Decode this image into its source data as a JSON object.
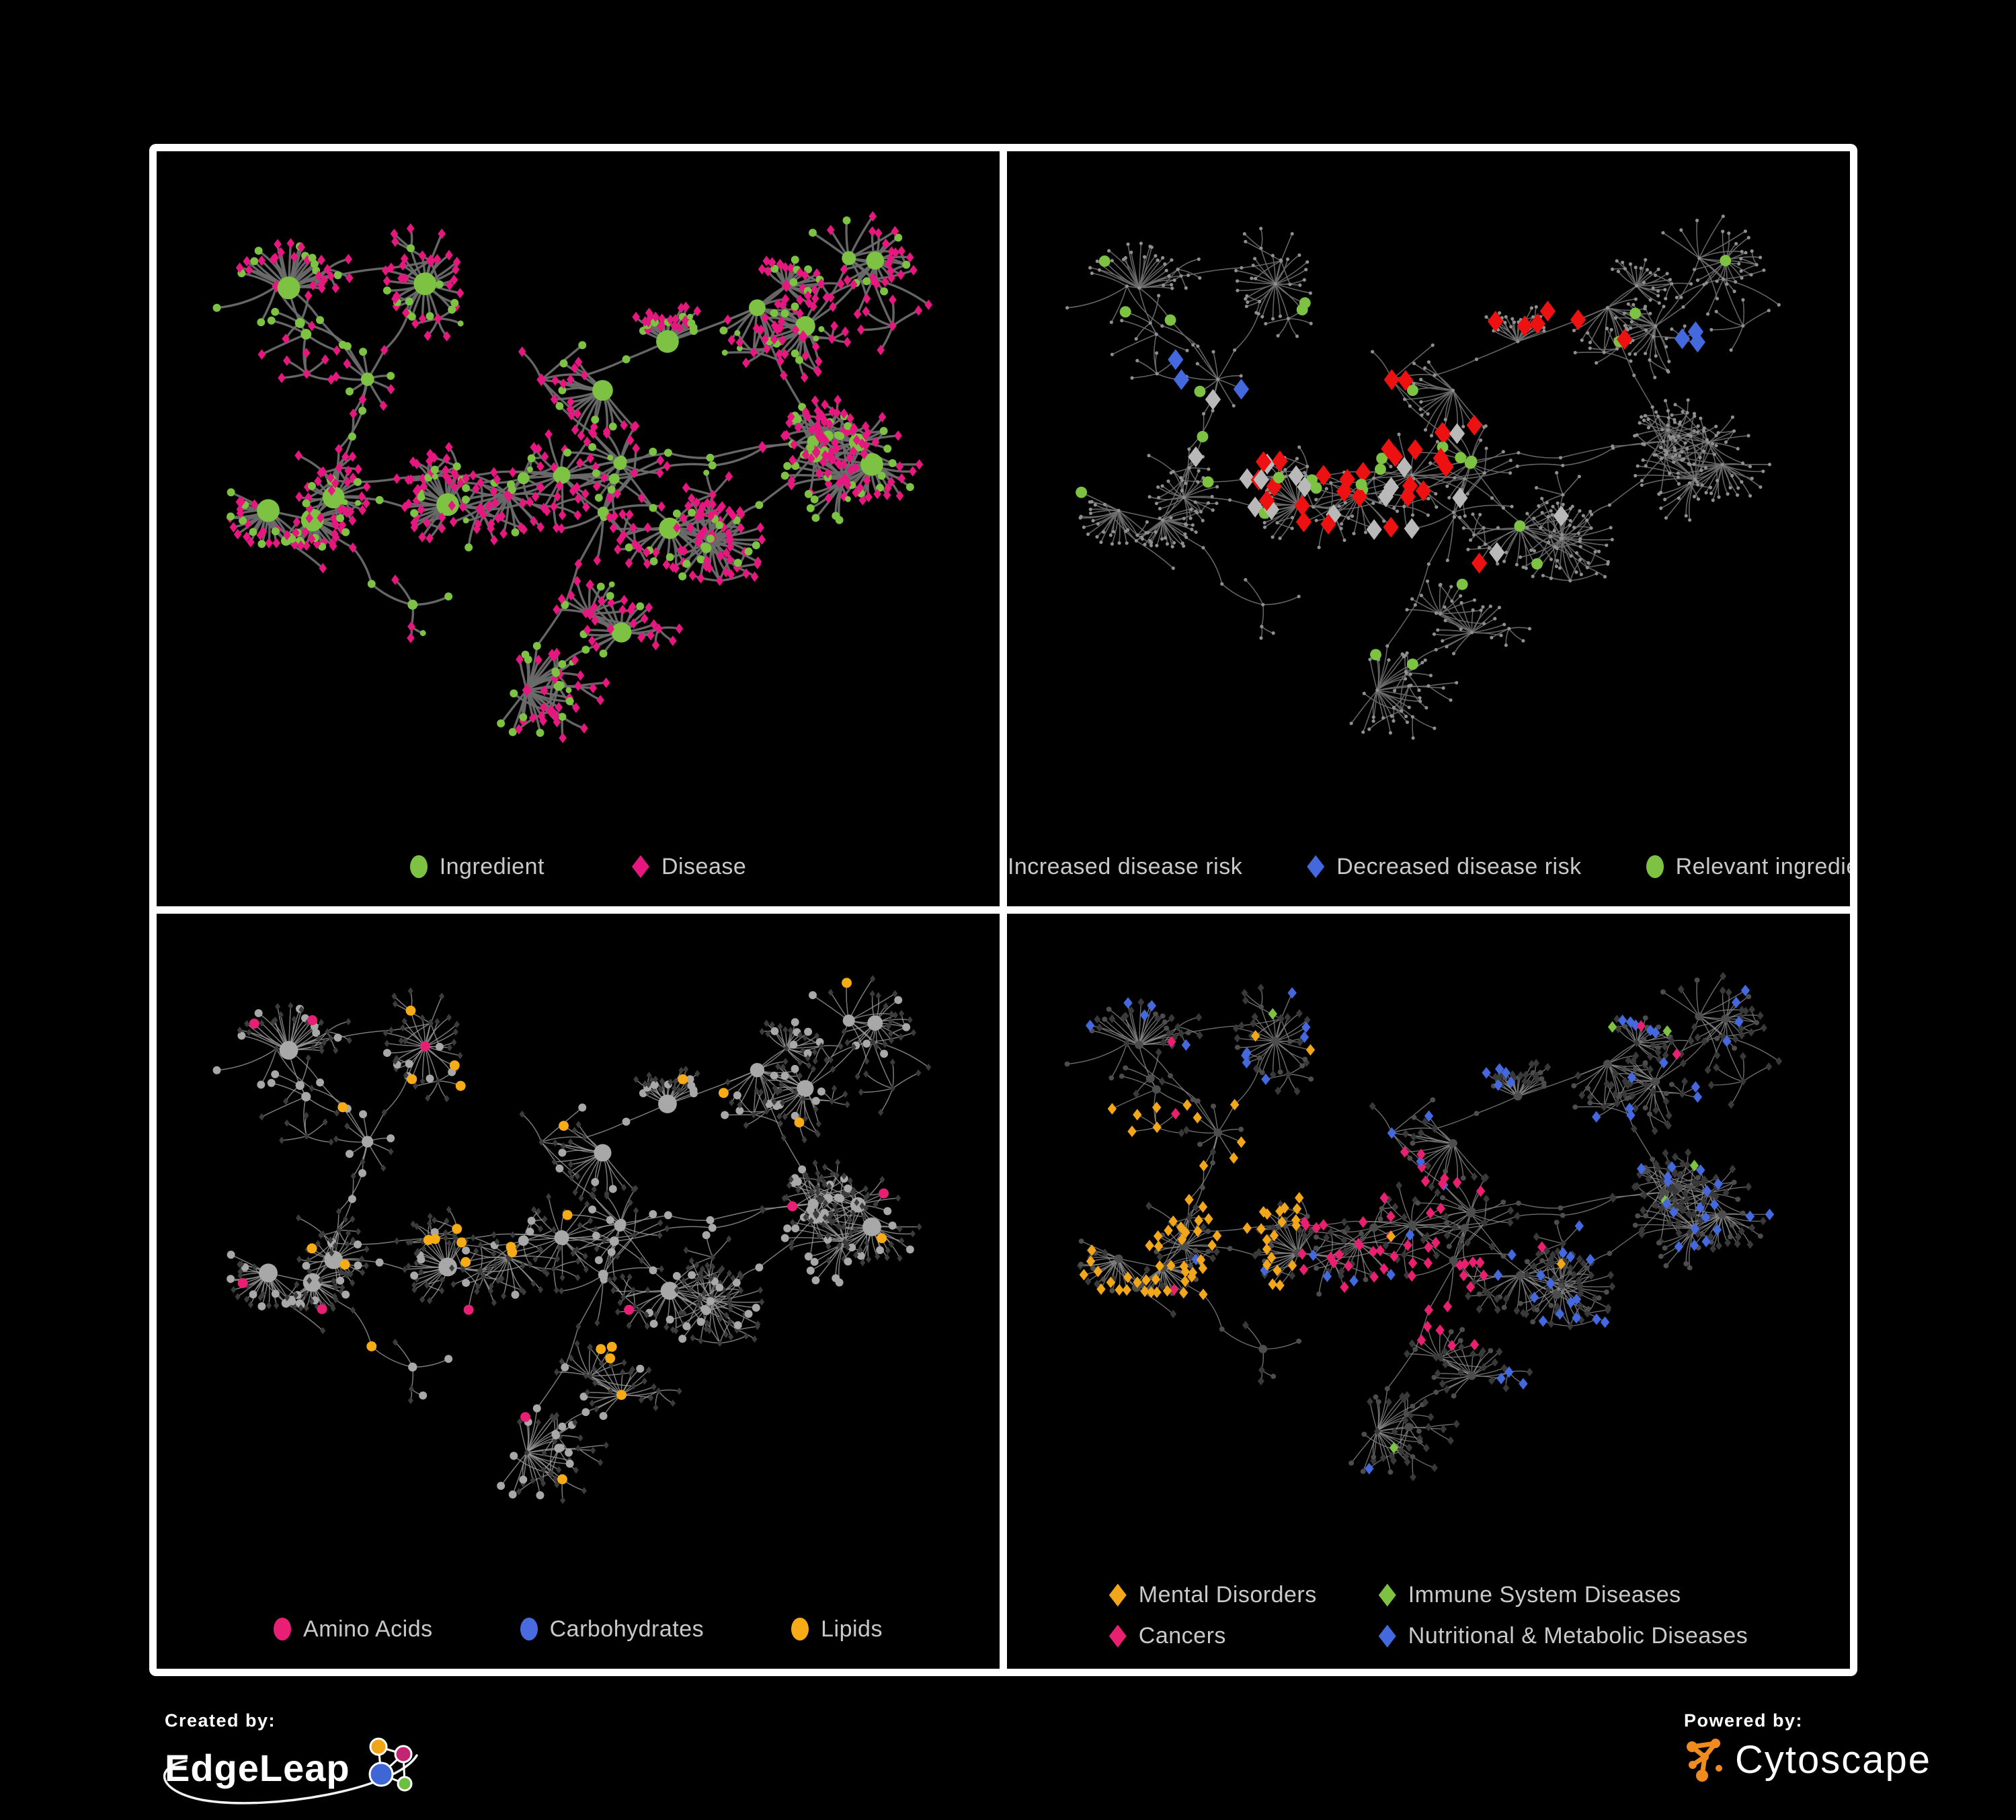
{
  "figure": {
    "background": "#000000",
    "frame_color": "#ffffff",
    "legend_text_color": "#c9c9c9"
  },
  "panels": [
    {
      "id": "ingredient-disease",
      "legend": [
        {
          "label": "Ingredient",
          "shape": "circle",
          "color": "#7dc242"
        },
        {
          "label": "Disease",
          "shape": "diamond",
          "color": "#e6177e"
        }
      ],
      "style": {
        "edge": "#6b6b6b",
        "edgeWidth": 3.4,
        "edgeOpacity": 0.95,
        "ingredient": "#7dc242",
        "disease": "#e6177e"
      }
    },
    {
      "id": "disease-risk",
      "legend": [
        {
          "label": "Increased disease risk",
          "shape": "diamond",
          "color": "#ee1111"
        },
        {
          "label": "Decreased disease risk",
          "shape": "diamond",
          "color": "#4468de"
        },
        {
          "label": "Relevant ingredient",
          "shape": "circle",
          "color": "#7dc242"
        }
      ],
      "style": {
        "edge": "#6e6e6e",
        "edgeWidth": 1.6,
        "edgeOpacity": 0.9,
        "base": "#8f8f8f",
        "increased": "#ee1111",
        "decreased": "#4468de",
        "other": "#b9b9b9",
        "ingredient": "#7dc242"
      }
    },
    {
      "id": "nutrient-classes",
      "legend": [
        {
          "label": "Amino Acids",
          "shape": "circle",
          "color": "#e91f75"
        },
        {
          "label": "Carbohydrates",
          "shape": "circle",
          "color": "#4a6be0"
        },
        {
          "label": "Lipids",
          "shape": "circle",
          "color": "#f7ab16"
        }
      ],
      "style": {
        "edge": "#9a9a9a",
        "edgeWidth": 1.5,
        "edgeOpacity": 0.8,
        "ingredientBase": "#a8a8a8",
        "disease": "#3c3c3c",
        "amino": "#e91f75",
        "carb": "#4a6be0",
        "lipid": "#f7ab16"
      }
    },
    {
      "id": "disease-categories",
      "legend": [
        {
          "label": "Mental Disorders",
          "shape": "diamond",
          "color": "#f2a71b"
        },
        {
          "label": "Immune System Diseases",
          "shape": "diamond",
          "color": "#7dc242"
        },
        {
          "label": "Cancers",
          "shape": "diamond",
          "color": "#e8206f"
        },
        {
          "label": "Nutritional & Metabolic Diseases",
          "shape": "diamond",
          "color": "#4468de"
        }
      ],
      "style": {
        "edge": "#8b8b8b",
        "edgeWidth": 1.4,
        "edgeOpacity": 0.8,
        "ingredient": "#4d4d4d",
        "disease": "#393939",
        "mental": "#f2a71b",
        "immune": "#7dc242",
        "cancer": "#e8206f",
        "nutri": "#4468de"
      }
    }
  ],
  "footer": {
    "created_by": "Created by:",
    "edgeleap": "EdgeLeap",
    "powered_by": "Powered by:",
    "cytoscape": "Cytoscape",
    "edgeleap_colors": {
      "blue": "#3e66d4",
      "orange": "#f0a418",
      "magenta": "#c32573",
      "green": "#6cbf3f"
    },
    "cytoscape_color": "#ef8b1f"
  },
  "network": {
    "seed": 42,
    "hubs": 48
  }
}
